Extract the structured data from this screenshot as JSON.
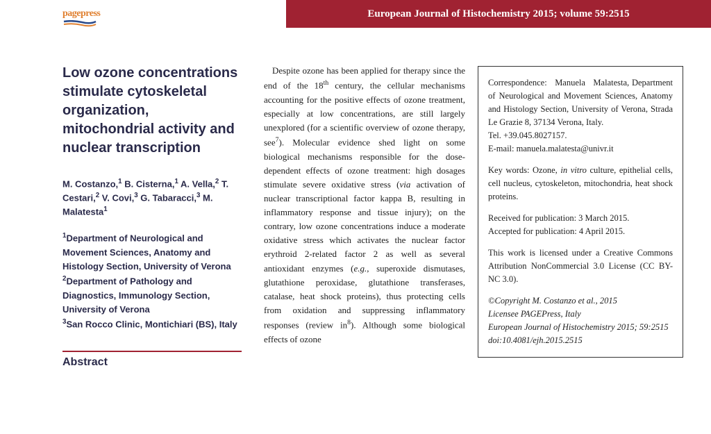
{
  "header": {
    "banner": "European Journal of Histochemistry 2015; volume 59:2515",
    "banner_bg": "#a02232",
    "logo_text": "pagepress"
  },
  "article": {
    "title": "Low ozone concentrations stimulate cytoskeletal organization, mitochondrial activity and nuclear transcription",
    "authors_html": "M. Costanzo,<sup>1</sup> B. Cisterna,<sup>1</sup> A. Vella,<sup>2</sup> T. Cestari,<sup>2</sup> V. Covi,<sup>3</sup> G. Tabaracci,<sup>3</sup> M. Malatesta<sup>1</sup>",
    "affiliations_html": "<sup>1</sup>Department of Neurological and Movement Sciences, Anatomy and Histology Section, University of Verona<br><sup>2</sup>Department of Pathology and Diagnostics, Immunology Section, University of Verona<br><sup>3</sup>San Rocco Clinic, Montichiari (BS), Italy",
    "abstract_heading": "Abstract"
  },
  "body": {
    "paragraph_html": "Despite ozone has been applied for therapy since the end of the 18<sup>th</sup> century, the cellular mechanisms accounting for the positive effects of ozone treatment, especially at low concentrations, are still largely unexplored (for a scientific overview of ozone therapy, see<sup>7</sup>). Molecular evidence shed light on some biological mechanisms responsible for the dose-dependent effects of ozone treatment: high dosages stimulate severe oxidative stress (<span class=\"italic\">via</span> activation of nuclear transcriptional factor kappa B, resulting in inflammatory response and tissue injury); on the contrary, low ozone concentrations induce a moderate oxidative stress which activates the nuclear factor erythroid 2-related factor 2 as well as several antioxidant enzymes (<span class=\"italic\">e.g.</span>, superoxide dismutases, glutathione peroxidase, glutathione transferases, catalase, heat shock proteins), thus protecting cells from oxidation and suppressing inflammatory responses (review in<sup>8</sup>). Although some biological effects of ozone"
  },
  "info": {
    "corr_html": "Correspondence: &nbsp;&nbsp;Manuela &nbsp;&nbsp;Malatesta, Department of Neurological and Movement Sciences, Anatomy and Histology Section, University of Verona, Strada Le Grazie 8, 37134 Verona, Italy.<br>Tel. +39.045.8027157.<br>E-mail: manuela.malatesta@univr.it",
    "keywords_html": "Key words: Ozone, <span class=\"italic\">in vitro</span> culture, epithelial cells, cell nucleus, cytoskeleton, mitochondria, heat shock proteins.",
    "dates_html": "Received for publication: 3 March 2015.<br>Accepted for publication: 4 April 2015.",
    "license_html": "This work is licensed under a Creative Commons Attribution NonCommercial 3.0 License (CC BY-NC 3.0).",
    "copyright_html": "©Copyright M. Costanzo et al., 2015<br>Licensee PAGEPress, Italy<br>European Journal of Histochemistry 2015; 59:2515<br>doi:10.4081/ejh.2015.2515"
  }
}
